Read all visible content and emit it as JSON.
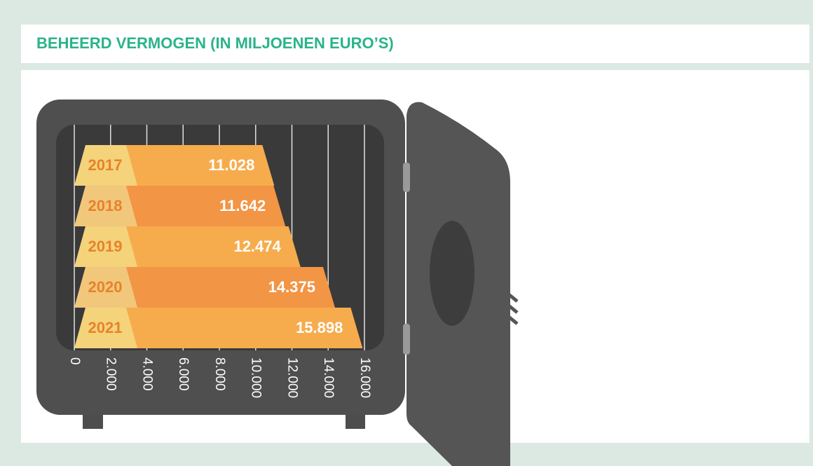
{
  "chart_data": {
    "type": "bar",
    "title": "BEHEERD VERMOGEN (IN MILJOENEN EURO’S)",
    "categories": [
      "2017",
      "2018",
      "2019",
      "2020",
      "2021"
    ],
    "values": [
      11028,
      11642,
      12474,
      14375,
      15898
    ],
    "value_labels": [
      "11.028",
      "11.642",
      "12.474",
      "14.375",
      "15.898"
    ],
    "colors": [
      "#f6ac4d",
      "#f29544",
      "#f6ac4d",
      "#f29544",
      "#f6ac4d"
    ],
    "xlim": [
      0,
      16000
    ],
    "xticks": [
      0,
      {
        "value": 2000,
        "label": "2.000"
      },
      {
        "value": 4000,
        "label": "4.000"
      },
      {
        "value": 6000,
        "label": "6.000"
      },
      {
        "value": 8000,
        "label": "8.000"
      },
      {
        "value": 10000,
        "label": "10.000"
      },
      {
        "value": 12000,
        "label": "12.000"
      },
      {
        "value": 14000,
        "label": "14.000"
      },
      {
        "value": 16000,
        "label": "16.000"
      }
    ],
    "grid": true
  }
}
